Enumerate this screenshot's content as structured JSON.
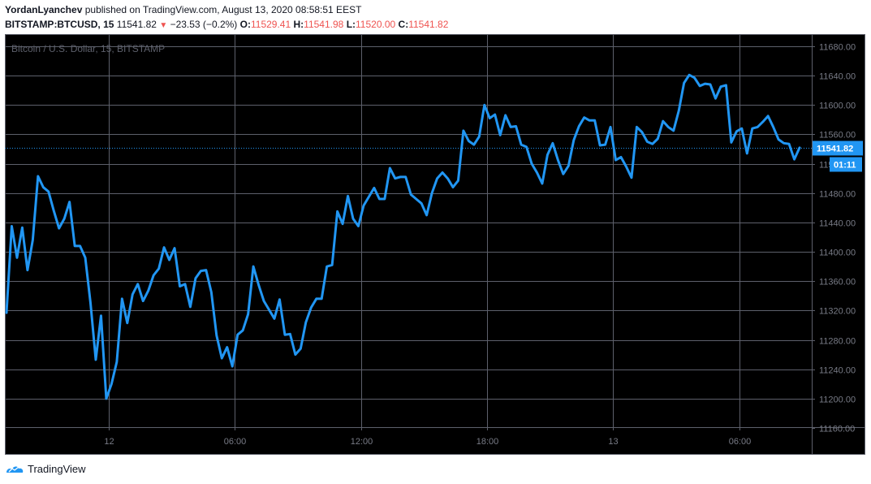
{
  "header": {
    "author": "YordanLyanchev",
    "published": "published on TradingView.com, August 13, 2020 08:58:51 EEST",
    "symbol": "BITSTAMP:BTCUSD, 15",
    "last": "11541.82",
    "change": "−23.53 (−0.2%)",
    "o_label": "O:",
    "o_value": "11529.41",
    "h_label": "H:",
    "h_value": "11541.98",
    "l_label": "L:",
    "l_value": "11520.00",
    "c_label": "C:",
    "c_value": "11541.82"
  },
  "chart_data": {
    "type": "line",
    "watermark": "Bitcoin / U.S. Dollar, 15, BITSTAMP",
    "ylim": [
      11160,
      11680
    ],
    "yticks": [
      "11680.00",
      "11640.00",
      "11600.00",
      "11560.00",
      "11520.00",
      "11480.00",
      "11440.00",
      "11400.00",
      "11360.00",
      "11320.00",
      "11280.00",
      "11240.00",
      "11200.00",
      "11160.00"
    ],
    "xticks": [
      "12",
      "06:00",
      "12:00",
      "18:00",
      "13",
      "06:00"
    ],
    "price_label": "11541.82",
    "countdown_label": "01:11",
    "last_price": 11541.82,
    "series": [
      {
        "values": [
          11317,
          11435,
          11392,
          11433,
          11375,
          11416,
          11503,
          11488,
          11482,
          11456,
          11432,
          11445,
          11468,
          11408,
          11408,
          11392,
          11330,
          11253,
          11313,
          11200,
          11220,
          11250,
          11336,
          11303,
          11342,
          11356,
          11333,
          11347,
          11368,
          11377,
          11406,
          11389,
          11405,
          11353,
          11356,
          11325,
          11364,
          11374,
          11375,
          11345,
          11286,
          11255,
          11270,
          11244,
          11287,
          11293,
          11315,
          11380,
          11355,
          11333,
          11321,
          11309,
          11335,
          11287,
          11288,
          11260,
          11268,
          11304,
          11324,
          11336,
          11336,
          11380,
          11382,
          11455,
          11438,
          11476,
          11445,
          11435,
          11463,
          11475,
          11487,
          11472,
          11472,
          11514,
          11500,
          11502,
          11502,
          11478,
          11472,
          11466,
          11450,
          11480,
          11500,
          11508,
          11500,
          11488,
          11497,
          11565,
          11551,
          11546,
          11557,
          11600,
          11582,
          11587,
          11559,
          11586,
          11570,
          11571,
          11546,
          11543,
          11520,
          11508,
          11493,
          11532,
          11548,
          11525,
          11506,
          11517,
          11552,
          11571,
          11583,
          11579,
          11579,
          11545,
          11546,
          11570,
          11525,
          11529,
          11516,
          11501,
          11570,
          11563,
          11550,
          11547,
          11554,
          11578,
          11570,
          11565,
          11592,
          11630,
          11641,
          11637,
          11626,
          11629,
          11628,
          11609,
          11625,
          11627,
          11549,
          11564,
          11568,
          11534,
          11568,
          11570,
          11577,
          11585,
          11570,
          11553,
          11548,
          11547,
          11526,
          11541.82
        ]
      }
    ],
    "colors": {
      "line": "#2196f3",
      "background": "#000000",
      "grid": "#5d606b",
      "axis_text": "#787b86",
      "price_tag": "#2196f3"
    }
  },
  "footer": {
    "brand": "TradingView"
  }
}
